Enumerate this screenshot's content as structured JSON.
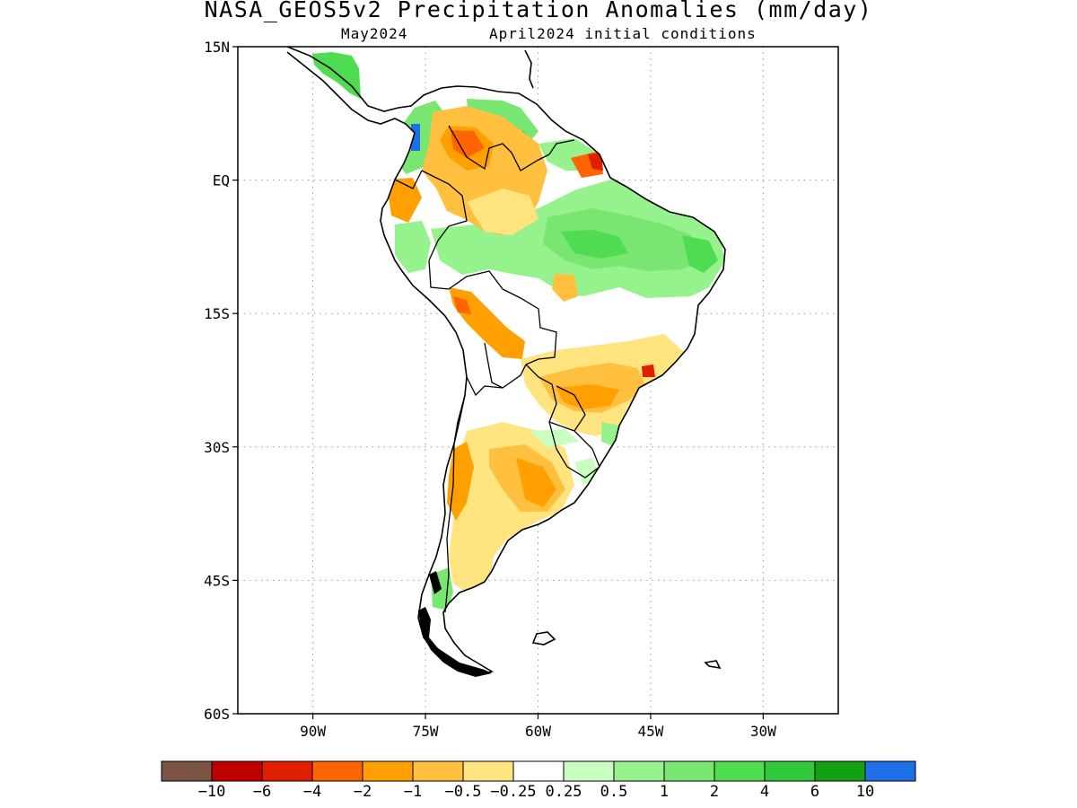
{
  "title": "NASA_GEOS5v2 Precipitation Anomalies (mm/day)",
  "subtitle_left": "May2024",
  "subtitle_right": "April2024 initial conditions",
  "map": {
    "lat_ticks": [
      "15N",
      "EQ",
      "15S",
      "30S",
      "45S",
      "60S"
    ],
    "lon_ticks": [
      "90W",
      "75W",
      "60W",
      "45W",
      "30W"
    ],
    "lat_values": [
      15,
      0,
      -15,
      -30,
      -45,
      -60
    ],
    "lon_values": [
      -90,
      -75,
      -60,
      -45,
      -30
    ],
    "lon_range": [
      -100,
      -20
    ],
    "lat_range": [
      -60,
      15
    ],
    "grid": "dotted"
  },
  "colorbar": {
    "colors": [
      "#7b5446",
      "#c00000",
      "#e01e00",
      "#ff6400",
      "#ffa000",
      "#ffc040",
      "#ffe480",
      "#ffffff",
      "#c8ffc0",
      "#96f28c",
      "#78e670",
      "#50dc50",
      "#32c83c",
      "#14a014",
      "#1e6ee6"
    ],
    "labels": [
      "−10",
      "−6",
      "−4",
      "−2",
      "−1",
      "−0.5",
      "−0.25",
      "0.25",
      "0.5",
      "1",
      "2",
      "4",
      "6",
      "10"
    ]
  },
  "chart_data": {
    "type": "heatmap",
    "title": "NASA_GEOS5v2 Precipitation Anomalies (mm/day)",
    "subtitle": "May2024 April2024 initial conditions",
    "x_axis": {
      "ticks": [
        "90W",
        "75W",
        "60W",
        "45W",
        "30W"
      ],
      "range": [
        -100,
        -20
      ]
    },
    "y_axis": {
      "ticks": [
        "15N",
        "EQ",
        "15S",
        "30S",
        "45S",
        "60S"
      ],
      "range": [
        -60,
        15
      ]
    },
    "colorbar_levels": [
      -10,
      -6,
      -4,
      -2,
      -1,
      -0.5,
      -0.25,
      0.25,
      0.5,
      1,
      2,
      4,
      6,
      10
    ],
    "regions": [
      {
        "lon": -52,
        "lat": -6,
        "value": 1
      },
      {
        "lon": -48,
        "lat": -3,
        "value": 2
      },
      {
        "lon": -64,
        "lat": 6,
        "value": 1
      },
      {
        "lon": -74,
        "lat": 6,
        "value": 1
      },
      {
        "lon": -75,
        "lat": 5,
        "value": 10
      },
      {
        "lon": -85,
        "lat": 13,
        "value": 2
      },
      {
        "lon": -67,
        "lat": 5,
        "value": -4
      },
      {
        "lon": -54,
        "lat": 4,
        "value": -4
      },
      {
        "lon": -70,
        "lat": 1,
        "value": -1
      },
      {
        "lon": -62,
        "lat": -1,
        "value": -1
      },
      {
        "lon": -70,
        "lat": -14,
        "value": -2
      },
      {
        "lon": -64,
        "lat": -18,
        "value": -2
      },
      {
        "lon": -45,
        "lat": -21,
        "value": -1
      },
      {
        "lon": -53,
        "lat": -22,
        "value": -1
      },
      {
        "lon": -60,
        "lat": -33,
        "value": -2
      },
      {
        "lon": -66,
        "lat": -36,
        "value": -1
      },
      {
        "lon": -71,
        "lat": -33,
        "value": -2
      },
      {
        "lon": -68,
        "lat": -42,
        "value": -0.5
      },
      {
        "lon": -73,
        "lat": -45,
        "value": 1
      }
    ]
  }
}
